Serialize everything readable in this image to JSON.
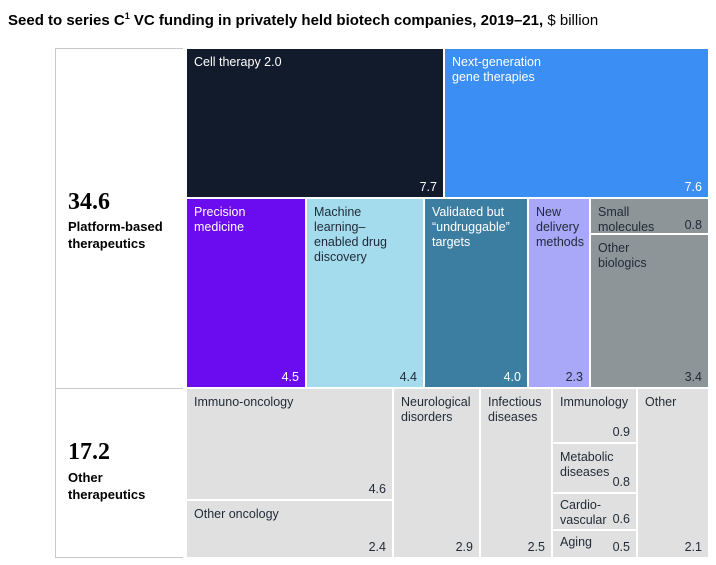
{
  "header": {
    "title_bold": "Seed to series C",
    "footnote_mark": "1",
    "title_bold_rest": " VC funding in privately held biotech companies, 2019–21,",
    "title_unit": " $ billion"
  },
  "colors": {
    "cell_therapy": "#121b2b",
    "next_gen_gene": "#3b8ef4",
    "precision": "#6b0cf0",
    "ml_drug": "#a4dcee",
    "undruggable": "#3c7ea1",
    "delivery": "#a9a7f8",
    "small_mol": "#8d9599",
    "other_bio": "#8d9599",
    "other_ther": "#e0e0e0"
  },
  "chart_data": {
    "type": "treemap",
    "title": "Seed to series C VC funding in privately held biotech companies, 2019–21, $ billion",
    "groups": [
      {
        "name": "Platform-based therapeutics",
        "total": "34.6",
        "items": [
          {
            "name": "Cell therapy 2.0",
            "value": "7.7"
          },
          {
            "name": "Next-generation gene therapies",
            "value": "7.6"
          },
          {
            "name": "Precision medicine",
            "value": "4.5"
          },
          {
            "name": "Machine learning–enabled drug discovery",
            "value": "4.4"
          },
          {
            "name": "Validated but “undruggable” targets",
            "value": "4.0"
          },
          {
            "name": "New delivery methods",
            "value": "2.3"
          },
          {
            "name": "Small molecules",
            "value": "0.8"
          },
          {
            "name": "Other biologics",
            "value": "3.4"
          }
        ]
      },
      {
        "name": "Other therapeutics",
        "total": "17.2",
        "items": [
          {
            "name": "Immuno-oncology",
            "value": "4.6"
          },
          {
            "name": "Other oncology",
            "value": "2.4"
          },
          {
            "name": "Neurological disorders",
            "value": "2.9"
          },
          {
            "name": "Infectious diseases",
            "value": "2.5"
          },
          {
            "name": "Immunology",
            "value": "0.9"
          },
          {
            "name": "Metabolic diseases",
            "value": "0.8"
          },
          {
            "name": "Cardio-vascular",
            "value": "0.6"
          },
          {
            "name": "Aging",
            "value": "0.5"
          },
          {
            "name": "Other",
            "value": "2.1"
          }
        ]
      }
    ]
  },
  "tiles": {
    "cell_therapy": {
      "name": "Cell therapy 2.0",
      "value": "7.7"
    },
    "next_gen_gene": {
      "name": "Next-generation\ngene therapies",
      "value": "7.6"
    },
    "precision": {
      "name": "Precision\nmedicine",
      "value": "4.5"
    },
    "ml_drug": {
      "name": "Machine\nlearning–\nenabled drug\ndiscovery",
      "value": "4.4"
    },
    "undruggable": {
      "name": "Validated but\n“undruggable”\ntargets",
      "value": "4.0"
    },
    "delivery": {
      "name": "New\ndelivery\nmethods",
      "value": "2.3"
    },
    "small_mol": {
      "name": "Small\nmolecules",
      "value": "0.8"
    },
    "other_bio": {
      "name": "Other\nbiologics",
      "value": "3.4"
    },
    "immuno_onc": {
      "name": "Immuno-oncology",
      "value": "4.6"
    },
    "other_onc": {
      "name": "Other oncology",
      "value": "2.4"
    },
    "neuro": {
      "name": "Neurological\ndisorders",
      "value": "2.9"
    },
    "infectious": {
      "name": "Infectious\ndiseases",
      "value": "2.5"
    },
    "immunology": {
      "name": "Immunology",
      "value": "0.9"
    },
    "metabolic": {
      "name": "Metabolic\ndiseases",
      "value": "0.8"
    },
    "cardio": {
      "name": "Cardio-\nvascular",
      "value": "0.6"
    },
    "aging": {
      "name": "Aging",
      "value": "0.5"
    },
    "other": {
      "name": "Other",
      "value": "2.1"
    }
  },
  "side": {
    "platform_total": "34.6",
    "platform_name": "Platform-based\ntherapeutics",
    "other_total": "17.2",
    "other_name": "Other\ntherapeutics"
  }
}
